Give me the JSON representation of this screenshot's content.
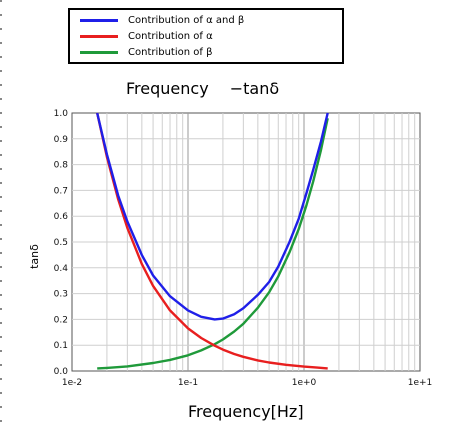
{
  "legend": [
    {
      "label": "Contribution of α and β",
      "color": "#1f1fe8"
    },
    {
      "label": "Contribution of α",
      "color": "#e81f1f"
    },
    {
      "label": "Contribution of β",
      "color": "#1f9a3a"
    }
  ],
  "chart_data": {
    "type": "line",
    "title": "Frequency 　−tanδ",
    "xlabel": "Frequency[Hz]",
    "ylabel": "tanδ",
    "xscale": "log",
    "xlim": [
      0.01,
      10
    ],
    "ylim": [
      0,
      1.0
    ],
    "grid": true,
    "x_ticks": [
      "1e-2",
      "1e-1",
      "1e+0",
      "1e+1"
    ],
    "y_ticks": [
      "0.0",
      "0.1",
      "0.2",
      "0.3",
      "0.4",
      "0.5",
      "0.6",
      "0.7",
      "0.8",
      "0.9",
      "1.0"
    ],
    "series": [
      {
        "name": "Contribution of α and β",
        "color": "#1f1fe8",
        "x": [
          0.0165,
          0.02,
          0.025,
          0.03,
          0.04,
          0.05,
          0.07,
          0.1,
          0.13,
          0.17,
          0.2,
          0.25,
          0.3,
          0.4,
          0.5,
          0.6,
          0.75,
          0.9,
          1.05,
          1.2,
          1.4,
          1.6
        ],
        "y": [
          1.0,
          0.84,
          0.68,
          0.58,
          0.45,
          0.37,
          0.29,
          0.235,
          0.21,
          0.2,
          0.203,
          0.22,
          0.243,
          0.295,
          0.345,
          0.405,
          0.5,
          0.59,
          0.69,
          0.78,
          0.89,
          1.0
        ]
      },
      {
        "name": "Contribution of α",
        "color": "#e81f1f",
        "x": [
          0.0165,
          0.02,
          0.025,
          0.03,
          0.04,
          0.05,
          0.07,
          0.1,
          0.13,
          0.17,
          0.2,
          0.25,
          0.3,
          0.4,
          0.5,
          0.7,
          1.0,
          1.3,
          1.6
        ],
        "y": [
          1.0,
          0.83,
          0.665,
          0.555,
          0.415,
          0.33,
          0.235,
          0.165,
          0.128,
          0.098,
          0.083,
          0.066,
          0.055,
          0.041,
          0.033,
          0.024,
          0.017,
          0.013,
          0.01
        ]
      },
      {
        "name": "Contribution of β",
        "color": "#1f9a3a",
        "x": [
          0.0165,
          0.02,
          0.03,
          0.05,
          0.07,
          0.1,
          0.13,
          0.17,
          0.2,
          0.25,
          0.3,
          0.4,
          0.5,
          0.6,
          0.75,
          0.9,
          1.05,
          1.2,
          1.4,
          1.6
        ],
        "y": [
          0.01,
          0.012,
          0.018,
          0.031,
          0.043,
          0.061,
          0.08,
          0.104,
          0.122,
          0.153,
          0.183,
          0.245,
          0.305,
          0.367,
          0.46,
          0.55,
          0.643,
          0.735,
          0.857,
          0.98
        ]
      }
    ]
  }
}
